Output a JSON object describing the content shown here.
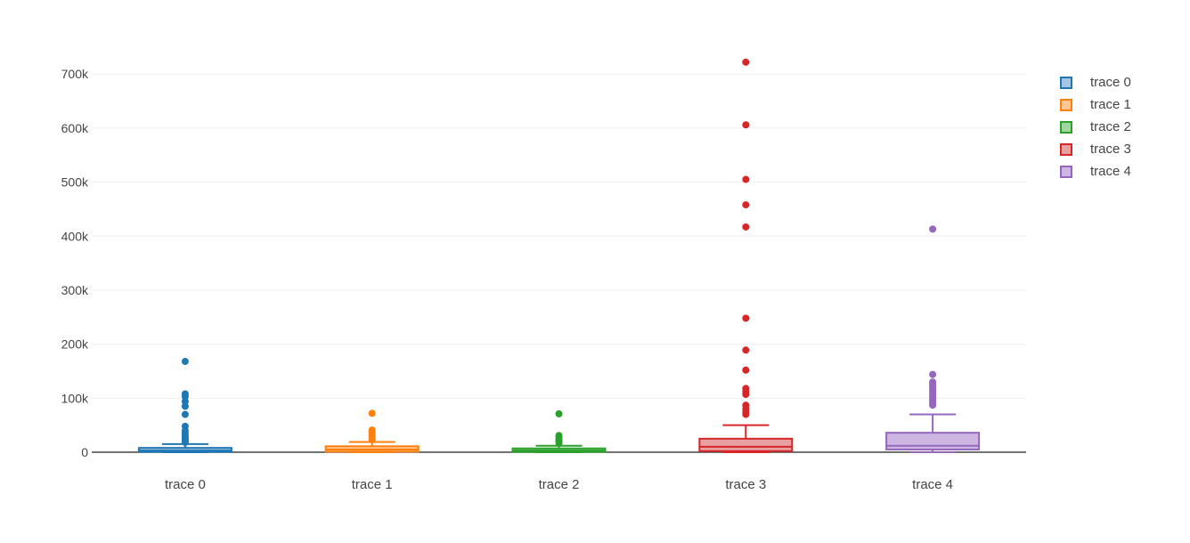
{
  "chart_data": {
    "type": "box",
    "ylim": [
      0,
      730000
    ],
    "yticks": [
      0,
      100000,
      200000,
      300000,
      400000,
      500000,
      600000,
      700000
    ],
    "ytick_labels": [
      "0",
      "100k",
      "200k",
      "300k",
      "400k",
      "500k",
      "600k",
      "700k"
    ],
    "categories": [
      "trace 0",
      "trace 1",
      "trace 2",
      "trace 3",
      "trace 4"
    ],
    "grid": true,
    "legend_position": "top-right",
    "series": [
      {
        "name": "trace 0",
        "color": "#1f77b4",
        "fill": "#a6c5e2",
        "min": 0,
        "q1": 500,
        "median": 3000,
        "q3": 8000,
        "max": 15000,
        "outliers": [
          168000,
          108000,
          103000,
          94000,
          85000,
          70000,
          48000,
          40000,
          35000,
          30000,
          27000,
          24000,
          21000,
          18000
        ]
      },
      {
        "name": "trace 1",
        "color": "#ff7f0e",
        "fill": "#ffc691",
        "min": 0,
        "q1": 1000,
        "median": 5000,
        "q3": 11000,
        "max": 19000,
        "outliers": [
          72000,
          41000,
          38000,
          35000,
          32000,
          29000,
          26000,
          23000
        ]
      },
      {
        "name": "trace 2",
        "color": "#2ca02c",
        "fill": "#a0d6a0",
        "min": 0,
        "q1": 500,
        "median": 3000,
        "q3": 7000,
        "max": 12000,
        "outliers": [
          71000,
          31000,
          27000,
          23000,
          20000,
          17000
        ]
      },
      {
        "name": "trace 3",
        "color": "#d62728",
        "fill": "#e8a0a0",
        "min": 0,
        "q1": 2000,
        "median": 10000,
        "q3": 25000,
        "max": 50000,
        "outliers": [
          722000,
          606000,
          505000,
          458000,
          417000,
          248000,
          189000,
          152000,
          118000,
          112000,
          107000,
          87000,
          80000,
          74000,
          70000
        ]
      },
      {
        "name": "trace 4",
        "color": "#9467bd",
        "fill": "#cdb7e2",
        "min": 0,
        "q1": 5000,
        "median": 12000,
        "q3": 36000,
        "max": 70000,
        "outliers": [
          413000,
          144000,
          130000,
          126000,
          122000,
          118000,
          114000,
          110000,
          106000,
          102000,
          98000,
          94000,
          90000,
          87000
        ]
      }
    ]
  }
}
